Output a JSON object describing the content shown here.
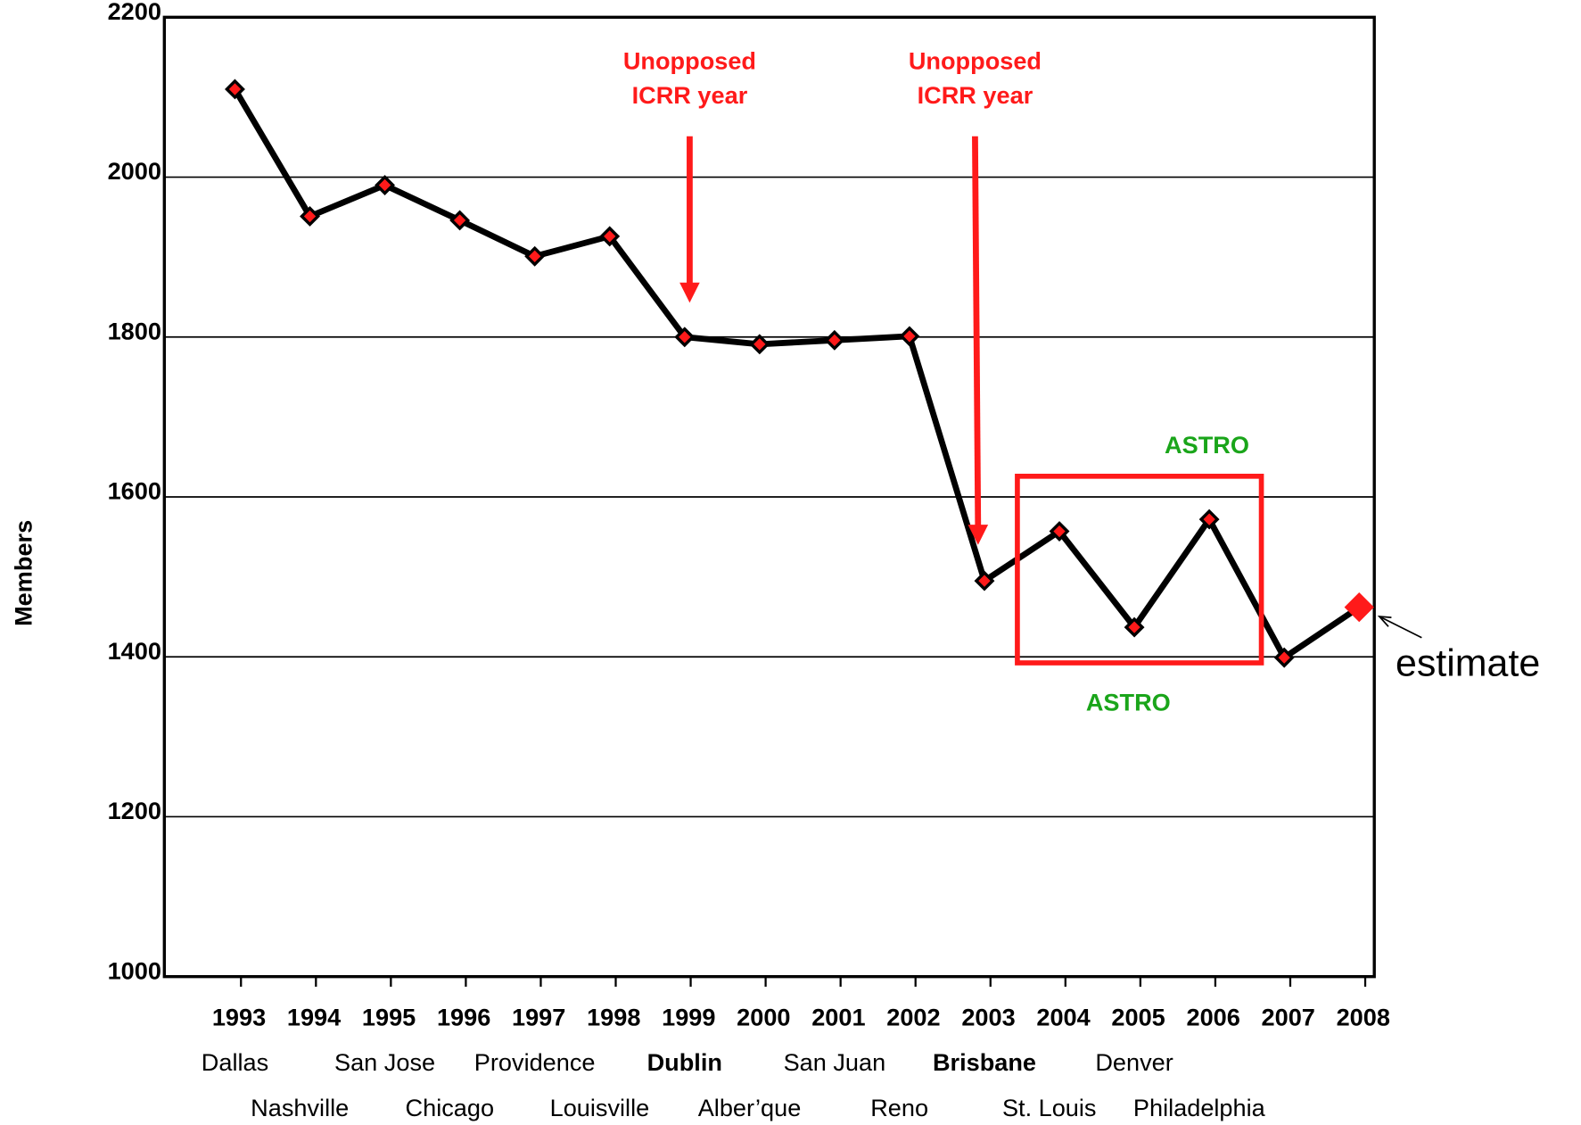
{
  "chart_data": {
    "type": "line",
    "y_label": "Members",
    "categories": [
      "1993",
      "1994",
      "1995",
      "1996",
      "1997",
      "1998",
      "1999",
      "2000",
      "2001",
      "2002",
      "2003",
      "2004",
      "2005",
      "2006",
      "2007",
      "2008"
    ],
    "series": [
      {
        "name": "Members",
        "color": "#000000",
        "marker_color": "#ff1a1a",
        "values": [
          2110,
          1951,
          1990,
          1946,
          1901,
          1926,
          1800,
          1791,
          1796,
          1801,
          1495,
          1557,
          1437,
          1572,
          1399,
          1462
        ]
      }
    ],
    "ylim": [
      1000,
      2200
    ],
    "yticks": [
      1000,
      1200,
      1400,
      1600,
      1800,
      2000,
      2200
    ],
    "grid": true,
    "venues": [
      {
        "name": "Dallas",
        "color": "#000000"
      },
      {
        "name": "Nashville",
        "color": "#000000"
      },
      {
        "name": "San Jose",
        "color": "#000000"
      },
      {
        "name": "Chicago",
        "color": "#000000"
      },
      {
        "name": "Providence",
        "color": "#000000"
      },
      {
        "name": "Louisville",
        "color": "#000000"
      },
      {
        "name": "Dublin",
        "color": "#ff1a1a"
      },
      {
        "name": "Alber’que",
        "color": "#000000"
      },
      {
        "name": "San Juan",
        "color": "#000000"
      },
      {
        "name": "Reno",
        "color": "#000000"
      },
      {
        "name": "Brisbane",
        "color": "#ff1a1a"
      },
      {
        "name": "St. Louis",
        "color": "#000000"
      },
      {
        "name": "Denver",
        "color": "#000000"
      },
      {
        "name": "Philadelphia",
        "color": "#000000"
      }
    ],
    "annotations": [
      {
        "lines": [
          "Unopposed",
          "ICRR year"
        ]
      },
      {
        "lines": [
          "Unopposed",
          "ICRR year"
        ]
      },
      {
        "text": "ASTRO"
      },
      {
        "text": "ASTRO"
      },
      {
        "text": "estimate"
      }
    ]
  }
}
